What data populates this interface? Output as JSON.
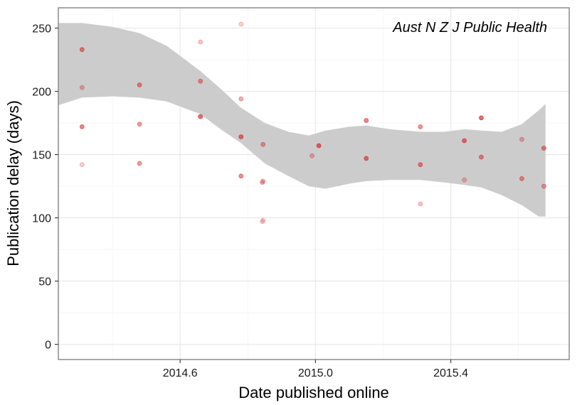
{
  "chart_data": {
    "type": "scatter",
    "title": "",
    "annotation": "Aust N Z J Public Health",
    "xlabel": "Date published online",
    "ylabel": "Publication delay (days)",
    "xlim": [
      2014.24,
      2015.75
    ],
    "ylim": [
      -12,
      266
    ],
    "x_ticks": [
      2014.6,
      2015.0,
      2015.4
    ],
    "x_tick_labels": [
      "2014.6",
      "2015.0",
      "2015.4"
    ],
    "y_ticks": [
      0,
      50,
      100,
      150,
      200,
      250
    ],
    "y_tick_labels": [
      "0",
      "50",
      "100",
      "150",
      "200",
      "250"
    ],
    "grid": true,
    "point_color": "#d62728",
    "band_color": "#cccccc",
    "points": [
      {
        "x": 2014.31,
        "y": 233
      },
      {
        "x": 2014.31,
        "y": 203
      },
      {
        "x": 2014.31,
        "y": 172
      },
      {
        "x": 2014.31,
        "y": 142
      },
      {
        "x": 2014.48,
        "y": 205
      },
      {
        "x": 2014.48,
        "y": 174
      },
      {
        "x": 2014.48,
        "y": 143
      },
      {
        "x": 2014.66,
        "y": 239
      },
      {
        "x": 2014.66,
        "y": 208
      },
      {
        "x": 2014.66,
        "y": 180
      },
      {
        "x": 2014.78,
        "y": 253
      },
      {
        "x": 2014.78,
        "y": 194
      },
      {
        "x": 2014.78,
        "y": 164
      },
      {
        "x": 2014.78,
        "y": 133
      },
      {
        "x": 2014.845,
        "y": 158
      },
      {
        "x": 2014.845,
        "y": 129
      },
      {
        "x": 2014.843,
        "y": 128
      },
      {
        "x": 2014.845,
        "y": 98
      },
      {
        "x": 2014.843,
        "y": 97
      },
      {
        "x": 2014.99,
        "y": 149
      },
      {
        "x": 2015.01,
        "y": 157
      },
      {
        "x": 2015.15,
        "y": 177
      },
      {
        "x": 2015.15,
        "y": 147
      },
      {
        "x": 2015.31,
        "y": 172
      },
      {
        "x": 2015.31,
        "y": 142
      },
      {
        "x": 2015.31,
        "y": 111
      },
      {
        "x": 2015.44,
        "y": 161
      },
      {
        "x": 2015.44,
        "y": 130
      },
      {
        "x": 2015.49,
        "y": 179
      },
      {
        "x": 2015.49,
        "y": 148
      },
      {
        "x": 2015.61,
        "y": 162
      },
      {
        "x": 2015.61,
        "y": 131
      },
      {
        "x": 2015.675,
        "y": 155
      },
      {
        "x": 2015.675,
        "y": 125
      }
    ],
    "point_alpha": [
      0.75,
      0.45,
      0.75,
      0.3,
      0.7,
      0.6,
      0.6,
      0.35,
      0.65,
      0.9,
      0.3,
      0.5,
      0.85,
      0.7,
      0.6,
      0.4,
      0.5,
      0.3,
      0.3,
      0.45,
      0.9,
      0.75,
      0.85,
      0.65,
      0.75,
      0.35,
      0.85,
      0.4,
      0.9,
      0.7,
      0.45,
      0.65,
      0.75,
      0.55
    ],
    "smooth_band": {
      "x": [
        2014.24,
        2014.31,
        2014.4,
        2014.48,
        2014.56,
        2014.66,
        2014.72,
        2014.78,
        2014.85,
        2014.92,
        2014.98,
        2015.03,
        2015.1,
        2015.15,
        2015.22,
        2015.31,
        2015.38,
        2015.44,
        2015.49,
        2015.55,
        2015.61,
        2015.66,
        2015.68
      ],
      "upper": [
        254,
        254,
        251,
        246,
        236,
        216,
        202,
        187,
        175,
        168,
        165,
        169,
        172,
        173,
        170,
        168,
        168,
        170,
        169,
        168,
        174,
        185,
        190
      ],
      "lower": [
        189,
        195,
        196,
        195,
        192,
        182,
        170,
        159,
        143,
        133,
        125,
        123,
        127,
        129,
        130,
        130,
        128,
        126,
        124,
        118,
        110,
        101,
        101
      ]
    }
  }
}
